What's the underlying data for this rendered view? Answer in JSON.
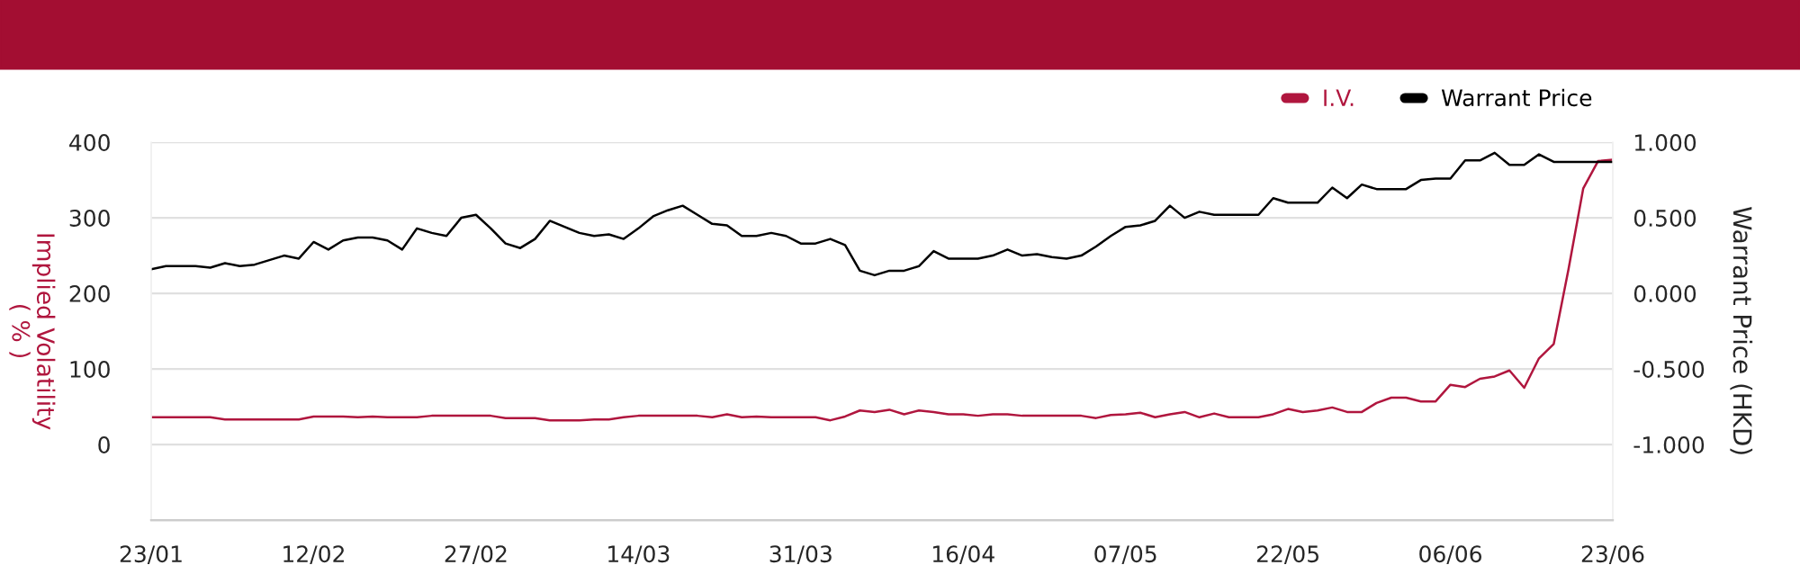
{
  "chart_data": {
    "type": "line",
    "categories": [
      "23/01",
      null,
      null,
      null,
      null,
      null,
      null,
      null,
      null,
      null,
      null,
      "12/02",
      null,
      null,
      null,
      null,
      null,
      null,
      null,
      null,
      null,
      null,
      "27/02",
      null,
      null,
      null,
      null,
      null,
      null,
      null,
      null,
      null,
      null,
      "14/03",
      null,
      null,
      null,
      null,
      null,
      null,
      null,
      null,
      null,
      null,
      "31/03",
      null,
      null,
      null,
      null,
      null,
      null,
      null,
      null,
      null,
      null,
      "16/04",
      null,
      null,
      null,
      null,
      null,
      null,
      null,
      null,
      null,
      null,
      "07/05",
      null,
      null,
      null,
      null,
      null,
      null,
      null,
      null,
      null,
      null,
      "22/05",
      null,
      null,
      null,
      null,
      null,
      null,
      null,
      null,
      null,
      null,
      "06/06",
      null,
      null,
      null,
      null,
      null,
      null,
      null,
      null,
      null,
      null,
      "23/06"
    ],
    "series": [
      {
        "name": "I.V.",
        "color": "#b0163e",
        "values": [
          36,
          36,
          36,
          36,
          36,
          33,
          33,
          33,
          33,
          33,
          33,
          37,
          37,
          37,
          36,
          37,
          36,
          36,
          36,
          38,
          38,
          38,
          38,
          38,
          35,
          35,
          35,
          32,
          32,
          32,
          33,
          33,
          36,
          38,
          38,
          38,
          38,
          38,
          36,
          40,
          36,
          37,
          36,
          36,
          36,
          36,
          32,
          37,
          45,
          43,
          46,
          40,
          45,
          43,
          40,
          40,
          38,
          40,
          40,
          38,
          38,
          38,
          38,
          38,
          35,
          39,
          40,
          42,
          36,
          40,
          43,
          36,
          41,
          36,
          36,
          36,
          40,
          47,
          43,
          45,
          49,
          43,
          43,
          55,
          62,
          62,
          57,
          57,
          79,
          76,
          87,
          90,
          98,
          75,
          114,
          133,
          232,
          339,
          375,
          377
        ]
      },
      {
        "name": "Warrant Price",
        "color": "#000000",
        "axis": "y2",
        "values": [
          0.16,
          0.18,
          0.18,
          0.18,
          0.17,
          0.2,
          0.18,
          0.19,
          0.22,
          0.25,
          0.23,
          0.34,
          0.29,
          0.35,
          0.37,
          0.37,
          0.35,
          0.29,
          0.43,
          0.4,
          0.38,
          0.5,
          0.52,
          0.43,
          0.33,
          0.3,
          0.36,
          0.48,
          0.44,
          0.4,
          0.38,
          0.39,
          0.36,
          0.43,
          0.51,
          0.55,
          0.58,
          0.52,
          0.46,
          0.45,
          0.38,
          0.38,
          0.4,
          0.38,
          0.33,
          0.33,
          0.36,
          0.32,
          0.15,
          0.12,
          0.15,
          0.15,
          0.18,
          0.28,
          0.23,
          0.23,
          0.23,
          0.25,
          0.29,
          0.25,
          0.26,
          0.24,
          0.23,
          0.25,
          0.31,
          0.38,
          0.44,
          0.45,
          0.48,
          0.58,
          0.5,
          0.54,
          0.52,
          0.52,
          0.52,
          0.52,
          0.63,
          0.6,
          0.6,
          0.6,
          0.7,
          0.63,
          0.72,
          0.69,
          0.69,
          0.69,
          0.75,
          0.76,
          0.76,
          0.88,
          0.88,
          0.93,
          0.85,
          0.85,
          0.92,
          0.87,
          0.87,
          0.87,
          0.87,
          0.87
        ]
      }
    ],
    "ylabel": "Implied Volatility\n( % )",
    "y2label": "Warrant Price (HKD)",
    "ylim": [
      -100,
      400
    ],
    "yticks": [
      0,
      100,
      200,
      300,
      400
    ],
    "y2lim": [
      -1.5,
      1.0
    ],
    "y2ticks": [
      {
        "value": -1.0,
        "label": "-1.000"
      },
      {
        "value": -0.5,
        "label": "-0.500"
      },
      {
        "value": 0.0,
        "label": "0.000"
      },
      {
        "value": 0.5,
        "label": "0.500"
      },
      {
        "value": 1.0,
        "label": "1.000"
      }
    ],
    "grid": "y",
    "legend": "top right",
    "marker": "none",
    "line_style": "solid"
  }
}
